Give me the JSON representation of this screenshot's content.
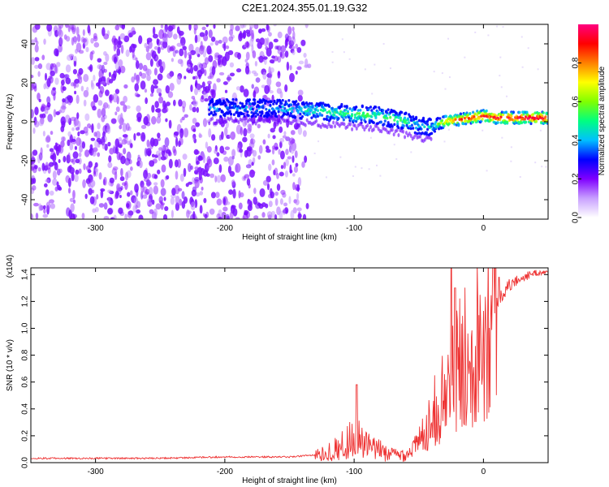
{
  "title": "C2E1.2024.355.01.19.G32",
  "chart_data": [
    {
      "type": "heatmap",
      "xlabel": "Height of straight line (km)",
      "ylabel": "Frequency (Hz)",
      "xlim": [
        -350,
        50
      ],
      "ylim": [
        -50,
        50
      ],
      "x_ticks": [
        -300,
        -200,
        -100,
        0
      ],
      "y_ticks": [
        -40,
        -20,
        0,
        20,
        40
      ],
      "colorbar": {
        "label": "Normalized spectral amplitude",
        "range": [
          0.0,
          1.0
        ],
        "ticks": [
          0.0,
          0.2,
          0.4,
          0.6,
          0.8
        ],
        "colors": [
          "#ffffff",
          "#c8a0ff",
          "#8000ff",
          "#0000ff",
          "#00c0ff",
          "#00ff80",
          "#80ff00",
          "#ffff00",
          "#ff8000",
          "#ff0000",
          "#ff0080"
        ]
      },
      "ridge": {
        "x": [
          -212,
          -200,
          -180,
          -160,
          -140,
          -120,
          -100,
          -80,
          -60,
          -50,
          -40,
          -35,
          -30,
          -20,
          -10,
          0,
          10,
          20,
          30,
          40,
          50
        ],
        "frequency": [
          7,
          7,
          7,
          7,
          6,
          5,
          4,
          3,
          0,
          -2,
          -3,
          -1,
          0,
          1,
          2,
          3,
          2,
          2,
          2,
          2,
          2
        ],
        "amplitude": [
          0.35,
          0.35,
          0.4,
          0.4,
          0.45,
          0.5,
          0.55,
          0.55,
          0.5,
          0.4,
          0.45,
          0.6,
          0.75,
          0.85,
          0.9,
          0.9,
          0.95,
          0.95,
          0.95,
          1.0,
          1.0
        ]
      },
      "noise_region": {
        "x": [
          -350,
          -135
        ],
        "frequency": [
          -50,
          50
        ],
        "amplitude": [
          0.1,
          0.35
        ]
      }
    },
    {
      "type": "line",
      "xlabel": "Height of straight line (km)",
      "ylabel": "SNR (10 * v/v)",
      "scale_label": "(x10^4)",
      "xlim": [
        -350,
        50
      ],
      "ylim": [
        0.0,
        1.45
      ],
      "x_ticks": [
        -300,
        -200,
        -100,
        0
      ],
      "y_ticks": [
        0.0,
        0.2,
        0.4,
        0.6,
        0.8,
        1.0,
        1.2,
        1.4
      ],
      "color": "#ee3333",
      "trend": {
        "x": [
          -350,
          -300,
          -250,
          -200,
          -150,
          -125,
          -110,
          -100,
          -90,
          -80,
          -70,
          -60,
          -50,
          -40,
          -30,
          -20,
          -10,
          0,
          10,
          20,
          30,
          40,
          50
        ],
        "y": [
          0.03,
          0.03,
          0.03,
          0.04,
          0.04,
          0.06,
          0.12,
          0.2,
          0.12,
          0.09,
          0.06,
          0.06,
          0.15,
          0.35,
          0.5,
          0.7,
          0.85,
          1.0,
          1.2,
          1.32,
          1.38,
          1.41,
          1.42
        ]
      },
      "peaks": [
        {
          "x": -98,
          "y": 0.58
        },
        {
          "x": -25,
          "y": 1.46
        },
        {
          "x": -22,
          "y": 1.3
        },
        {
          "x": 12,
          "y": 1.38
        }
      ]
    }
  ]
}
